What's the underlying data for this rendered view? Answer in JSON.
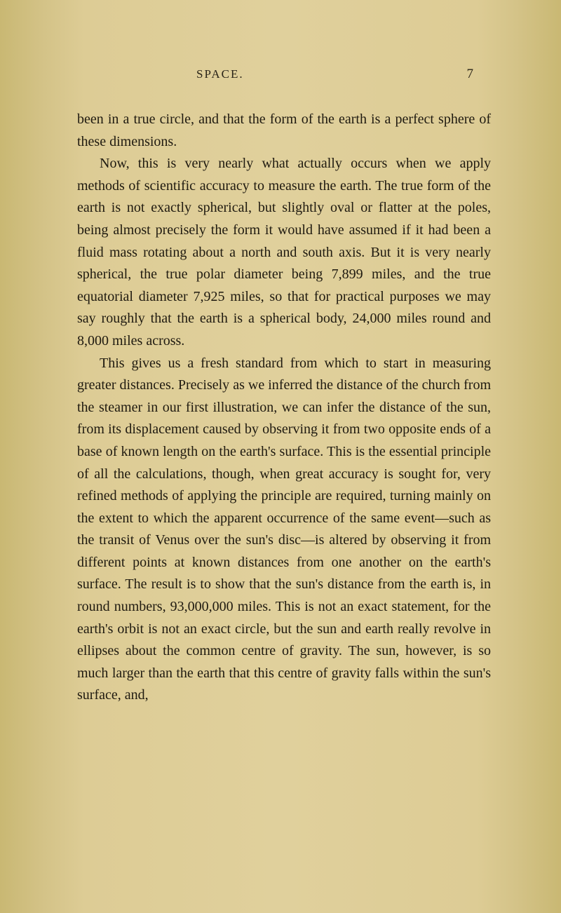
{
  "header": {
    "title": "SPACE.",
    "pageNumber": "7"
  },
  "paragraphs": {
    "p1": "been in a true circle, and that the form of the earth is a perfect sphere of these dimensions.",
    "p2": "Now, this is very nearly what actually occurs when we apply methods of scientific accuracy to measure the earth. The true form of the earth is not exactly spherical, but slightly oval or flatter at the poles, being almost precisely the form it would have assumed if it had been a fluid mass rotating about a north and south axis. But it is very nearly spherical, the true polar diameter being 7,899 miles, and the true equatorial diameter 7,925 miles, so that for practical purposes we may say roughly that the earth is a spherical body, 24,000 miles round and 8,000 miles across.",
    "p3": "This gives us a fresh standard from which to start in measuring greater distances. Precisely as we inferred the distance of the church from the steamer in our first illustration, we can infer the distance of the sun, from its displacement caused by observing it from two opposite ends of a base of known length on the earth's surface. This is the essential principle of all the calculations, though, when great accuracy is sought for, very refined methods of applying the principle are required, turning mainly on the extent to which the apparent occurrence of the same event—such as the transit of Venus over the sun's disc—is altered by observing it from different points at known distances from one another on the earth's surface. The result is to show that the sun's distance from the earth is, in round numbers, 93,000,000 miles. This is not an exact statement, for the earth's orbit is not an exact circle, but the sun and earth really revolve in ellipses about the common centre of gravity. The sun, however, is so much larger than the earth that this centre of gravity falls within the sun's surface, and,"
  }
}
